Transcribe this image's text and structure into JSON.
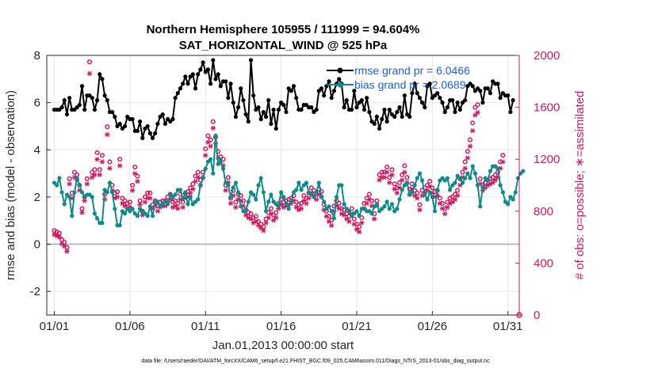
{
  "chart_data": {
    "type": "line",
    "title": "Northern Hemisphere 105955 / 111999 = 94.604%",
    "subtitle": "SAT_HORIZONTAL_WIND @ 525 hPa",
    "xlabel": "Jan.01,2013 00:00:00 start",
    "ylabel_left": "rmse and bias (model - observation)",
    "ylabel_right": "# of obs: o=possible; ∗=assimilated",
    "footer": "data file: /Users/raeder/DAI/ATM_forcXX/CAM6_setup/f.e21.FHIST_BGC.f09_025.CAM6assim.011/Diags_NTrS_2013-01/obs_diag_output.nc",
    "xlim": [
      0.5,
      31.75
    ],
    "ylim_left": [
      -3,
      8
    ],
    "ylim_right": [
      0,
      2000
    ],
    "y_ticks_left": [
      "-2",
      "0",
      "2",
      "4",
      "6",
      "8"
    ],
    "y_ticks_right": [
      "0",
      "400",
      "800",
      "1200",
      "1600",
      "2000"
    ],
    "x_ticks": [
      "01/01",
      "01/06",
      "01/11",
      "01/16",
      "01/21",
      "01/26",
      "01/31"
    ],
    "x_tick_days": [
      1,
      6,
      11,
      16,
      21,
      26,
      31
    ],
    "y_tick_values_left": [
      -2,
      0,
      2,
      4,
      6,
      8
    ],
    "y_tick_values_right": [
      0,
      400,
      800,
      1200,
      1600,
      2000
    ],
    "grid": true,
    "colors": {
      "rmse": "#000000",
      "bias": "#0f8a8a",
      "obs": "#d1195e",
      "zero_line": "#a8a8a8",
      "legend_text": "#1f5fd6"
    },
    "series": [
      {
        "name": "rmse grand pr = 6.0466",
        "axis": "left",
        "values": [
          5.7,
          5.7,
          5.7,
          5.8,
          6.1,
          5.5,
          6.2,
          5.7,
          5.7,
          5.8,
          5.9,
          6.7,
          5.7,
          6.3,
          6.3,
          6.2,
          5.7,
          6.1,
          7.2,
          7.0,
          6.3,
          6.1,
          5.6,
          5.6,
          5.4,
          5.0,
          5.1,
          4.9,
          5.0,
          5.4,
          5.3,
          5.3,
          4.8,
          4.8,
          5.2,
          4.5,
          4.9,
          5.0,
          4.7,
          4.5,
          4.7,
          5.1,
          5.4,
          5.5,
          5.1,
          5.3,
          5.2,
          5.3,
          6.2,
          6.4,
          6.6,
          6.8,
          7.1,
          6.8,
          7.1,
          7.2,
          6.6,
          7.2,
          7.4,
          7.7,
          7.3,
          7.4,
          6.8,
          7.8,
          7.0,
          7.2,
          6.7,
          6.9,
          6.9,
          6.2,
          6.8,
          6.0,
          5.4,
          5.8,
          6.6,
          6.1,
          5.5,
          5.2,
          7.8,
          6.3,
          5.7,
          5.8,
          5.3,
          5.6,
          5.4,
          6.1,
          5.1,
          5.7,
          4.9,
          5.7,
          6.0,
          5.9,
          5.6,
          6.6,
          6.5,
          6.7,
          6.2,
          5.7,
          5.7,
          5.9,
          5.9,
          5.8,
          5.8,
          5.6,
          5.7,
          6.5,
          6.6,
          6.3,
          6.7,
          6.9,
          6.2,
          6.5,
          6.8,
          7.0,
          6.8,
          5.8,
          6.1,
          5.7,
          5.7,
          6.5,
          5.8,
          6.0,
          6.1,
          5.7,
          6.2,
          5.6,
          5.2,
          5.1,
          5.4,
          4.9,
          5.3,
          5.7,
          5.2,
          5.7,
          5.5,
          5.4,
          5.6,
          5.8,
          5.4,
          6.3,
          5.5,
          5.4,
          6.4,
          6.8,
          6.4,
          6.2,
          6.0,
          5.8,
          6.7,
          6.8,
          6.2,
          6.3,
          6.4,
          6.2,
          6.0,
          5.6,
          5.8,
          6.1,
          6.1,
          5.6,
          6.0,
          5.7,
          6.0,
          6.1,
          6.7,
          6.8,
          6.7,
          6.5,
          6.6,
          6.5,
          6.0,
          6.6,
          6.6,
          6.4,
          6.9,
          6.8,
          6.8,
          6.2,
          6.4,
          6.3,
          6.3,
          5.6,
          6.1
        ]
      },
      {
        "name": "bias grand pr = 2.0689",
        "axis": "left",
        "values": [
          2.6,
          2.5,
          2.8,
          2.2,
          1.7,
          2.1,
          2.0,
          1.2,
          2.2,
          2.8,
          2.5,
          2.2,
          2.0,
          2.1,
          2.1,
          2.0,
          1.3,
          1.1,
          0.9,
          0.9,
          2.3,
          2.2,
          2.6,
          2.2,
          1.5,
          0.8,
          0.8,
          1.4,
          1.3,
          1.5,
          1.4,
          1.5,
          1.3,
          1.2,
          1.5,
          1.4,
          1.3,
          1.2,
          1.6,
          1.2,
          1.8,
          1.8,
          1.6,
          1.7,
          1.8,
          1.7,
          2.1,
          2.0,
          2.1,
          2.3,
          2.3,
          1.9,
          2.2,
          1.7,
          2.0,
          1.7,
          1.8,
          1.9,
          2.5,
          2.8,
          3.2,
          3.5,
          3.6,
          3.0,
          4.6,
          3.4,
          3.6,
          3.2,
          2.6,
          2.5,
          2.0,
          2.4,
          2.6,
          2.2,
          1.6,
          1.4,
          1.4,
          1.8,
          2.2,
          2.1,
          1.9,
          2.5,
          2.8,
          2.2,
          1.4,
          1.8,
          2.1,
          1.8,
          1.7,
          1.6,
          2.2,
          2.0,
          1.7,
          1.5,
          1.8,
          2.2,
          2.3,
          2.6,
          2.3,
          2.5,
          2.6,
          2.2,
          2.1,
          2.0,
          2.2,
          2.6,
          2.0,
          1.8,
          1.5,
          1.6,
          1.4,
          1.1,
          2.0,
          2.5,
          2.5,
          1.7,
          1.5,
          1.4,
          1.2,
          1.3,
          1.4,
          1.2,
          1.5,
          1.5,
          1.4,
          1.4,
          1.3,
          1.6,
          1.7,
          1.4,
          1.5,
          1.6,
          1.8,
          1.5,
          1.7,
          1.4,
          1.5,
          1.9,
          2.3,
          2.5,
          2.6,
          2.1,
          2.2,
          2.5,
          2.8,
          3.0,
          2.7,
          2.1,
          1.9,
          2.2,
          2.0,
          1.4,
          2.3,
          2.7,
          2.8,
          2.7,
          2.8,
          2.3,
          2.5,
          2.6,
          2.9,
          2.8,
          2.6,
          2.8,
          3.0,
          2.8,
          3.3,
          3.0,
          2.5,
          1.6,
          2.4,
          2.8,
          2.7,
          3.1,
          3.3,
          3.3,
          3.2,
          2.5,
          2.2,
          1.8,
          1.7,
          2.0,
          1.9,
          2.2,
          2.8,
          3.0,
          3.1
        ]
      },
      {
        "name": "possible obs",
        "axis": "right",
        "marker": "circle",
        "values": [
          650,
          640,
          630,
          580,
          560,
          520,
          1050,
          940,
          1100,
          1080,
          1000,
          820,
          910,
          1050,
          1950,
          1100,
          1120,
          1250,
          1120,
          1230,
          930,
          1450,
          1180,
          1000,
          940,
          950,
          1200,
          900,
          880,
          860,
          870,
          1000,
          1140,
          1070,
          880,
          800,
          910,
          940,
          940,
          850,
          880,
          840,
          870,
          880,
          880,
          910,
          930,
          870,
          880,
          860,
          930,
          870,
          940,
          950,
          980,
          1010,
          1070,
          1100,
          1040,
          1100,
          1280,
          1380,
          1350,
          1490,
          1370,
          1260,
          1220,
          1200,
          1000,
          1060,
          900,
          960,
          870,
          930,
          920,
          880,
          810,
          790,
          780,
          750,
          760,
          720,
          700,
          680,
          740,
          790,
          820,
          770,
          790,
          860,
          890,
          870,
          880,
          890,
          900,
          920,
          870,
          850,
          860,
          920,
          900,
          940,
          980,
          960,
          930,
          970,
          950,
          850,
          800,
          760,
          730,
          840,
          880,
          860,
          820,
          810,
          780,
          760,
          820,
          740,
          700,
          680,
          750,
          860,
          900,
          930,
          880,
          780,
          880,
          1080,
          1100,
          1100,
          1140,
          1060,
          1120,
          1010,
          980,
          1020,
          1080,
          1150,
          1060,
          970,
          1010,
          960,
          940,
          850,
          960,
          980,
          1000,
          1030,
          980,
          950,
          960,
          900,
          860,
          820,
          870,
          900,
          910,
          930,
          960,
          1050,
          1100,
          1180,
          1260,
          1350,
          1480,
          1600,
          1620,
          1050,
          1000,
          1020,
          1040,
          1050,
          1060,
          1080,
          1100,
          1180,
          1230
        ]
      },
      {
        "name": "assimilated obs",
        "axis": "right",
        "marker": "star",
        "values": [
          620,
          610,
          600,
          550,
          530,
          490,
          1010,
          900,
          1060,
          1040,
          960,
          790,
          880,
          1010,
          1860,
          1060,
          1080,
          1200,
          1080,
          1180,
          890,
          1390,
          1130,
          960,
          900,
          910,
          1150,
          860,
          840,
          820,
          830,
          960,
          1090,
          1030,
          850,
          770,
          870,
          900,
          900,
          820,
          840,
          800,
          830,
          840,
          840,
          870,
          890,
          830,
          840,
          820,
          890,
          830,
          900,
          910,
          940,
          970,
          1030,
          1060,
          1000,
          1060,
          1230,
          1330,
          1300,
          1440,
          1320,
          1210,
          1170,
          1150,
          960,
          1020,
          860,
          920,
          830,
          890,
          880,
          840,
          770,
          750,
          740,
          710,
          720,
          690,
          670,
          650,
          710,
          750,
          780,
          730,
          750,
          820,
          850,
          830,
          840,
          850,
          860,
          880,
          830,
          810,
          820,
          880,
          860,
          900,
          940,
          920,
          890,
          930,
          910,
          810,
          760,
          720,
          690,
          800,
          840,
          820,
          780,
          770,
          740,
          720,
          780,
          700,
          660,
          640,
          710,
          820,
          860,
          890,
          840,
          740,
          840,
          1040,
          1060,
          1060,
          1100,
          1020,
          1080,
          970,
          940,
          980,
          1040,
          1100,
          1020,
          930,
          970,
          920,
          900,
          810,
          920,
          940,
          960,
          990,
          940,
          910,
          920,
          860,
          820,
          780,
          830,
          860,
          870,
          890,
          920,
          1000,
          1060,
          1130,
          1210,
          1300,
          1420,
          1540,
          1560,
          1010,
          960,
          980,
          1000,
          1010,
          1020,
          1040,
          1060,
          1130,
          1180
        ]
      }
    ]
  }
}
